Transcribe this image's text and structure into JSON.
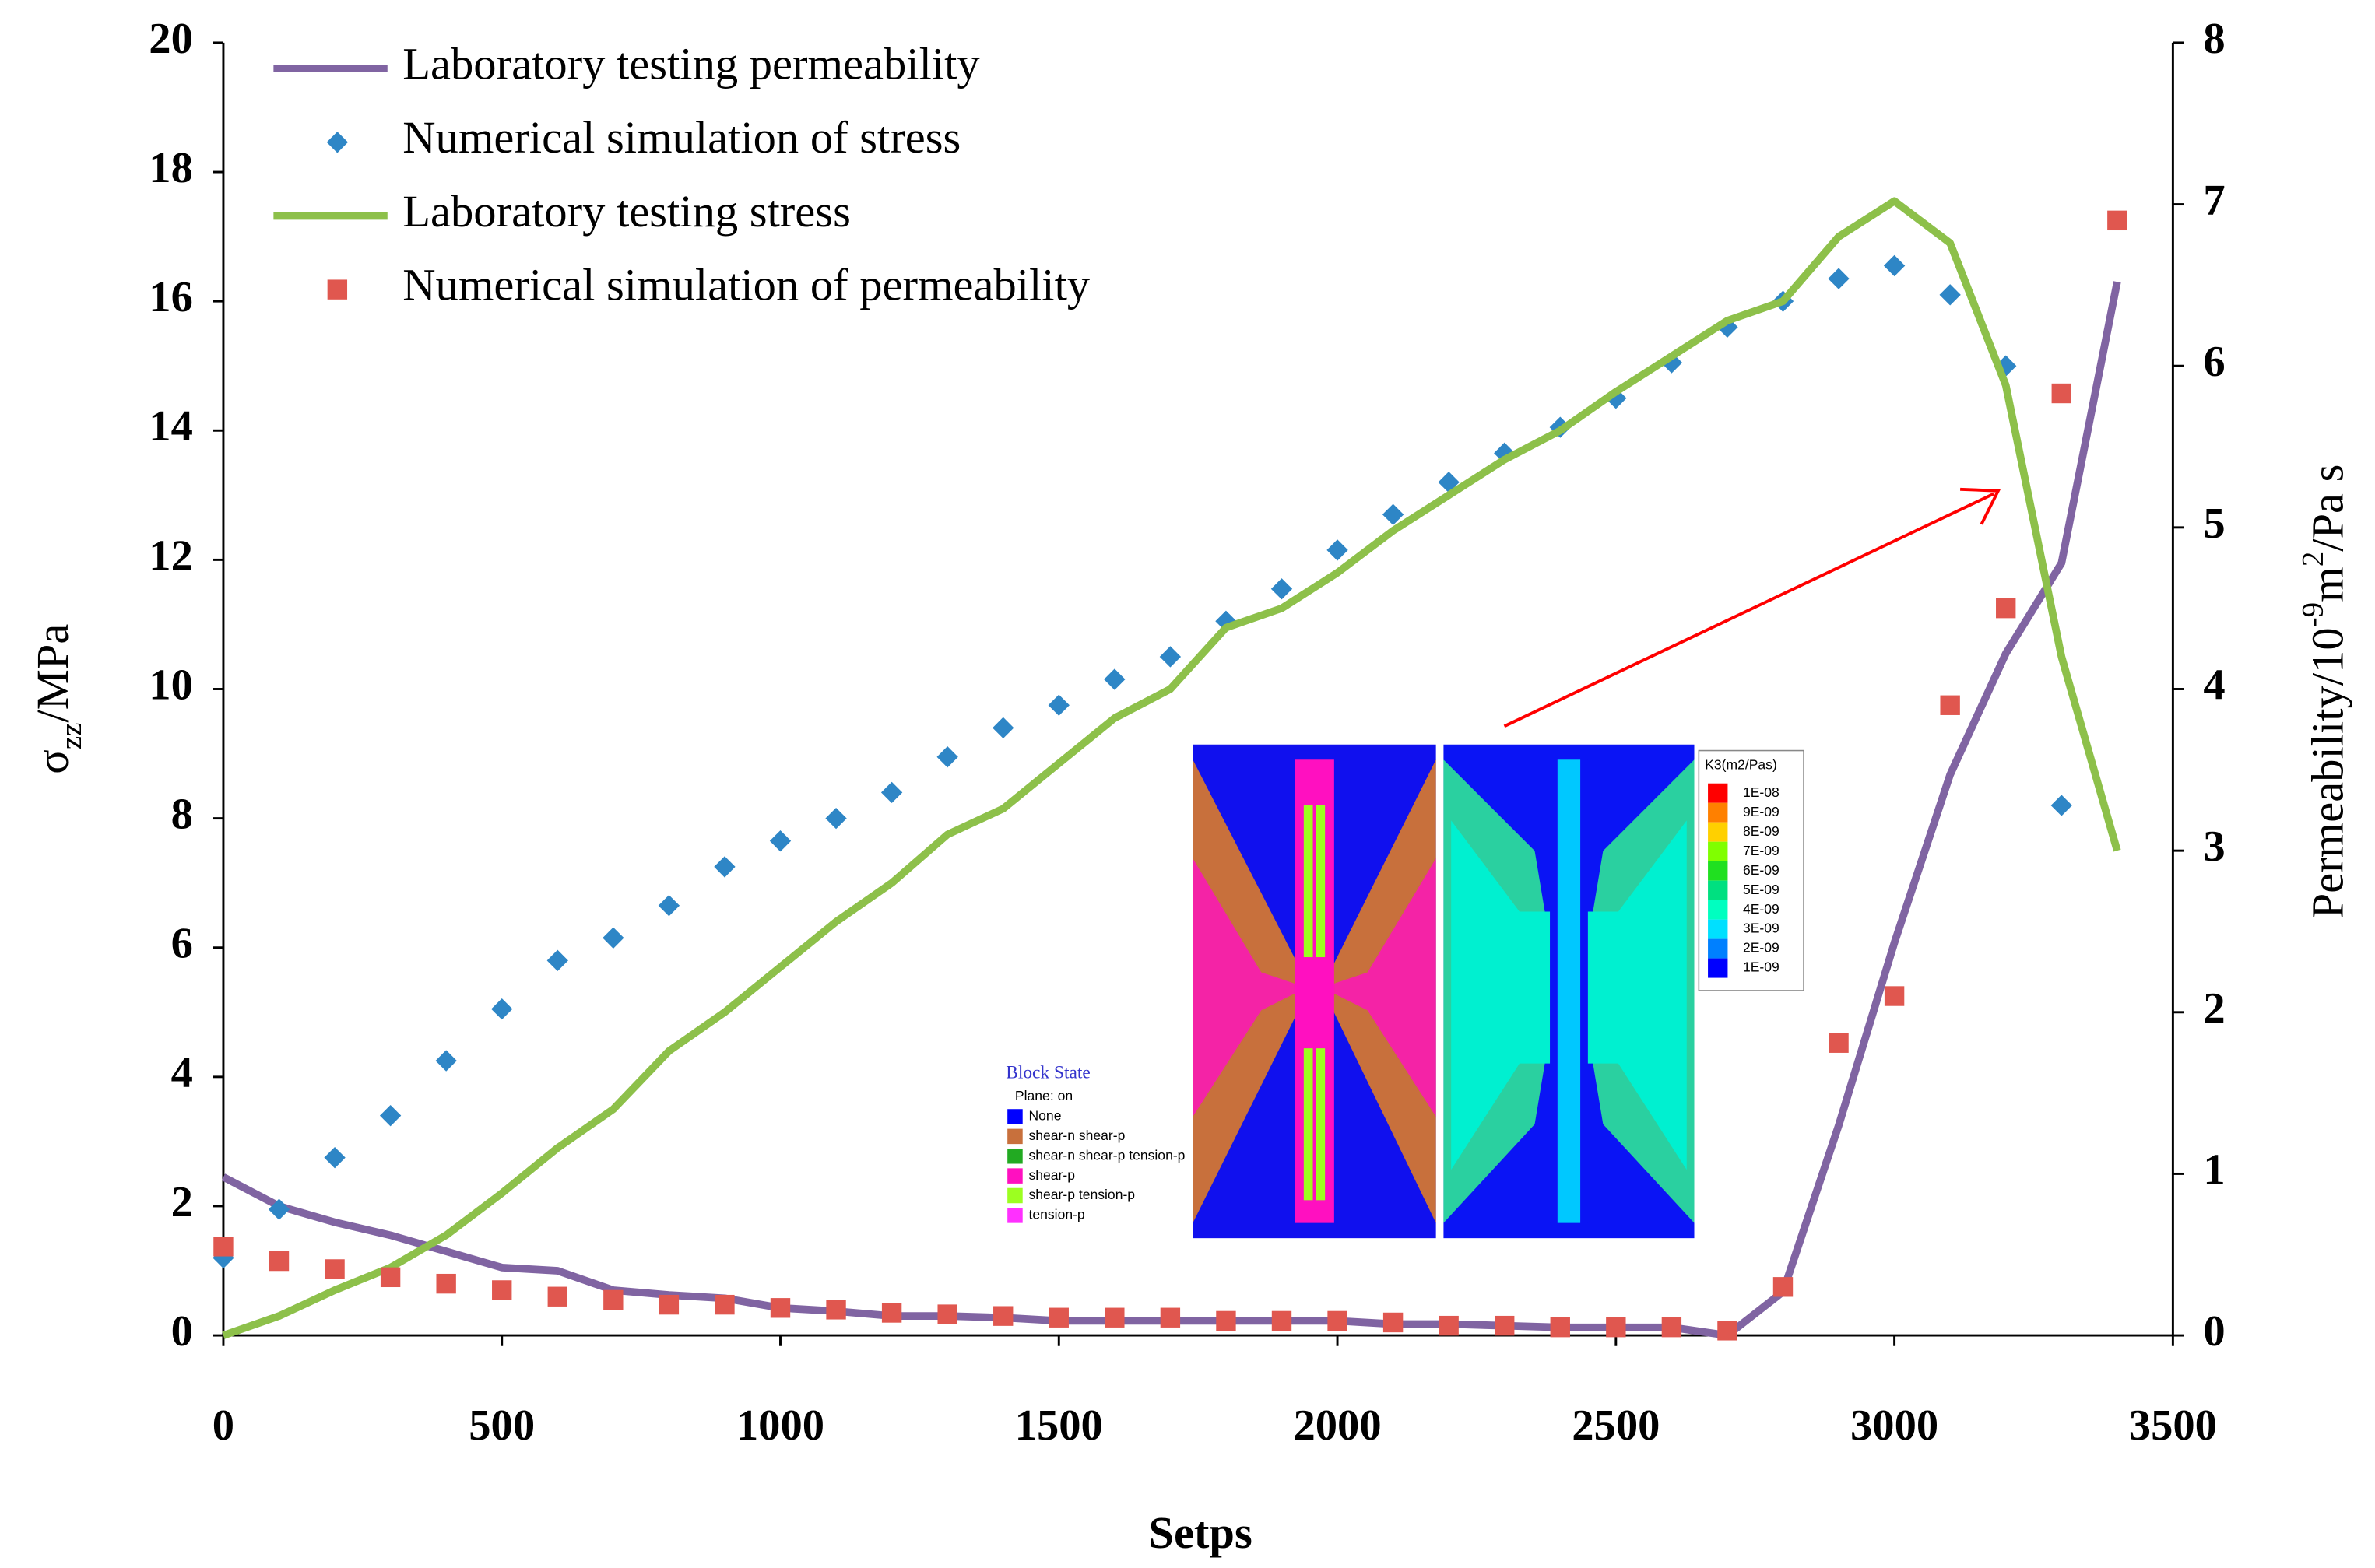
{
  "chart_data": {
    "type": "line",
    "x": [
      0,
      100,
      200,
      300,
      400,
      500,
      600,
      700,
      800,
      900,
      1000,
      1100,
      1200,
      1300,
      1400,
      1500,
      1600,
      1700,
      1800,
      1900,
      2000,
      2100,
      2200,
      2300,
      2400,
      2500,
      2600,
      2700,
      2800,
      2900,
      3000,
      3100,
      3200,
      3300,
      3400
    ],
    "xlabel": "Setps",
    "ylabel_parts": [
      "σ",
      "zz",
      "/MPa"
    ],
    "y2label_parts": [
      "Permeability/10",
      "-9",
      "m",
      "2",
      "/Pa s"
    ],
    "xlim": [
      0,
      3500
    ],
    "xticks": [
      0,
      500,
      1000,
      1500,
      2000,
      2500,
      3000,
      3500
    ],
    "ylim": [
      0,
      20
    ],
    "yticks": [
      0,
      2,
      4,
      6,
      8,
      10,
      12,
      14,
      16,
      18,
      20
    ],
    "y2lim": [
      0,
      8
    ],
    "y2ticks": [
      0,
      1,
      2,
      3,
      4,
      5,
      6,
      7,
      8
    ],
    "legend": "upper left",
    "series": [
      {
        "name": "Laboratory testing permeability",
        "type": "line",
        "axis": "y2",
        "color": "#8064a2",
        "values": [
          0.98,
          0.8,
          0.7,
          0.62,
          0.52,
          0.42,
          0.4,
          0.28,
          0.25,
          0.23,
          0.17,
          0.15,
          0.12,
          0.12,
          0.11,
          0.09,
          0.09,
          0.09,
          0.09,
          0.09,
          0.09,
          0.07,
          0.07,
          0.06,
          0.05,
          0.05,
          0.05,
          0.0,
          0.27,
          1.3,
          2.43,
          3.47,
          4.22,
          4.78,
          6.52
        ]
      },
      {
        "name": "Numerical simulation of stress",
        "type": "scatter",
        "marker": "diamond",
        "color": "#2e86c6",
        "values": [
          1.2,
          1.95,
          2.75,
          3.4,
          4.25,
          5.05,
          5.8,
          6.15,
          6.65,
          7.25,
          7.65,
          8.0,
          8.4,
          8.95,
          9.4,
          9.75,
          10.15,
          10.5,
          11.05,
          11.55,
          12.15,
          12.7,
          13.2,
          13.65,
          14.05,
          14.5,
          15.05,
          15.6,
          16.0,
          16.35,
          16.55,
          16.1,
          15.0,
          8.2,
          null
        ]
      },
      {
        "name": "Laboratory testing stress",
        "type": "line",
        "color": "#8dc04a",
        "values": [
          0,
          0.3,
          0.7,
          1.05,
          1.55,
          2.2,
          2.9,
          3.5,
          4.4,
          5.0,
          5.7,
          6.4,
          7.0,
          7.75,
          8.15,
          8.85,
          9.55,
          10.0,
          10.95,
          11.25,
          11.8,
          12.45,
          13.0,
          13.55,
          14.0,
          14.6,
          15.15,
          15.7,
          16.0,
          17.0,
          17.55,
          16.9,
          14.7,
          10.5,
          7.5
        ]
      },
      {
        "name": "Numerical simulation of permeability",
        "type": "scatter",
        "marker": "square",
        "axis": "y2",
        "color": "#e0574f",
        "values": [
          0.55,
          0.46,
          0.41,
          0.36,
          0.32,
          0.28,
          0.24,
          0.22,
          0.19,
          0.19,
          0.17,
          0.16,
          0.14,
          0.13,
          0.12,
          0.11,
          0.11,
          0.11,
          0.09,
          0.09,
          0.09,
          0.08,
          0.06,
          0.06,
          0.05,
          0.05,
          0.05,
          0.03,
          0.3,
          1.81,
          2.1,
          3.9,
          4.5,
          5.83,
          6.9
        ]
      }
    ],
    "insets": {
      "block_state": {
        "title": "Block State",
        "subtitle": "Plane: on",
        "items": [
          {
            "label": "None",
            "color": "#0000ff"
          },
          {
            "label": "shear-n shear-p",
            "color": "#c8703c"
          },
          {
            "label": "shear-n shear-p tension-p",
            "color": "#22aa22"
          },
          {
            "label": "shear-p",
            "color": "#ff10c0"
          },
          {
            "label": "shear-p tension-p",
            "color": "#9cff20"
          },
          {
            "label": "tension-p",
            "color": "#ff30ff"
          }
        ]
      },
      "k3": {
        "title": "K3(m2/Pas)",
        "items": [
          {
            "label": "1E-08",
            "color": "#ff0000"
          },
          {
            "label": "9E-09",
            "color": "#ff8000"
          },
          {
            "label": "8E-09",
            "color": "#ffd000"
          },
          {
            "label": "7E-09",
            "color": "#80ff00"
          },
          {
            "label": "6E-09",
            "color": "#20e020"
          },
          {
            "label": "5E-09",
            "color": "#00e080"
          },
          {
            "label": "4E-09",
            "color": "#00ffc0"
          },
          {
            "label": "3E-09",
            "color": "#00e0ff"
          },
          {
            "label": "2E-09",
            "color": "#0080ff"
          },
          {
            "label": "1E-09",
            "color": "#0000ff"
          }
        ]
      }
    }
  }
}
